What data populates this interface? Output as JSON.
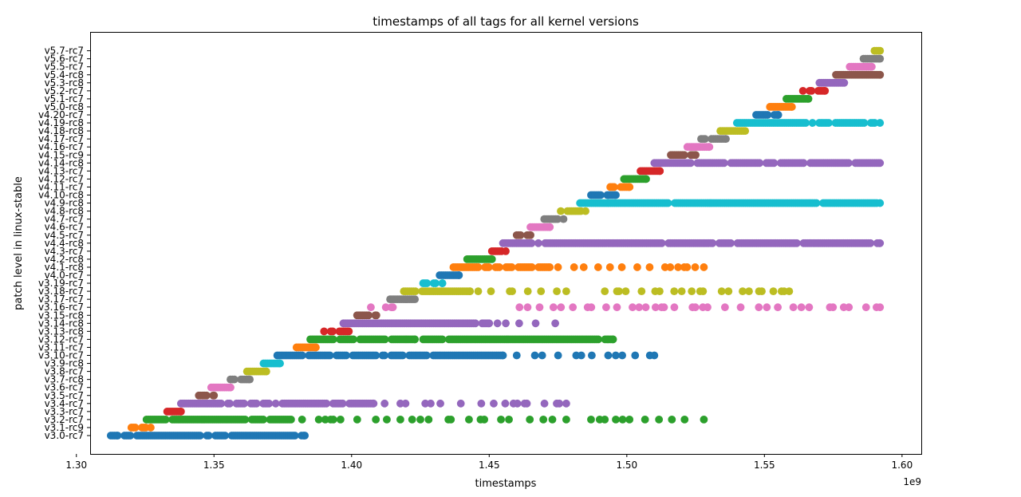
{
  "chart_data": {
    "type": "scatter",
    "title": "timestamps of all tags for all kernel versions",
    "xlabel": "timestamps",
    "ylabel": "patch level in linux-stable",
    "x_offset_label": "1e9",
    "xlim": [
      1.305,
      1.607
    ],
    "x_ticks": [
      1.3,
      1.35,
      1.4,
      1.45,
      1.5,
      1.55,
      1.6
    ],
    "x_tick_labels": [
      "1.30",
      "1.35",
      "1.40",
      "1.45",
      "1.50",
      "1.55",
      "1.60"
    ],
    "grid": false,
    "categories": [
      "v3.0-rc7",
      "v3.1-rc9",
      "v3.2-rc7",
      "v3.3-rc7",
      "v3.4-rc7",
      "v3.5-rc7",
      "v3.6-rc7",
      "v3.7-rc8",
      "v3.8-rc7",
      "v3.9-rc8",
      "v3.10-rc7",
      "v3.11-rc7",
      "v3.12-rc7",
      "v3.13-rc8",
      "v3.14-rc8",
      "v3.15-rc8",
      "v3.16-rc7",
      "v3.17-rc7",
      "v3.18-rc7",
      "v3.19-rc7",
      "v4.0-rc7",
      "v4.1-rc8",
      "v4.2-rc8",
      "v4.3-rc7",
      "v4.4-rc8",
      "v4.5-rc7",
      "v4.6-rc7",
      "v4.7-rc7",
      "v4.8-rc8",
      "v4.9-rc8",
      "v4.10-rc8",
      "v4.11-rc7",
      "v4.12-rc7",
      "v4.13-rc7",
      "v4.14-rc8",
      "v4.15-rc9",
      "v4.16-rc7",
      "v4.17-rc7",
      "v4.18-rc8",
      "v4.19-rc8",
      "v4.20-rc7",
      "v5.0-rc8",
      "v5.1-rc7",
      "v5.2-rc7",
      "v5.3-rc8",
      "v5.4-rc8",
      "v5.5-rc7",
      "v5.6-rc7",
      "v5.7-rc7"
    ],
    "colors": [
      "#1f77b4",
      "#ff7f0e",
      "#2ca02c",
      "#d62728",
      "#9467bd",
      "#8c564b",
      "#e377c2",
      "#7f7f7f",
      "#bcbd22",
      "#17becf"
    ],
    "series": [
      {
        "values": [
          [
            1.3125,
            1.315
          ],
          [
            1.3175,
            1.383
          ]
        ]
      },
      {
        "values": [
          [
            1.32,
            1.327
          ]
        ]
      },
      {
        "values": [
          [
            1.3255,
            1.378
          ],
          [
            1.382,
            1.422
          ],
          [
            1.425,
            1.478
          ],
          [
            1.487,
            1.492
          ],
          [
            1.496,
            1.521
          ],
          [
            1.528,
            1.528
          ]
        ],
        "sparse_from": 1.378
      },
      {
        "values": [
          [
            1.333,
            1.338
          ]
        ]
      },
      {
        "values": [
          [
            1.338,
            1.408
          ],
          [
            1.412,
            1.478
          ]
        ],
        "sparse_from": 1.408
      },
      {
        "values": [
          [
            1.3445,
            1.35
          ]
        ]
      },
      {
        "values": [
          [
            1.349,
            1.356
          ]
        ]
      },
      {
        "values": [
          [
            1.356,
            1.363
          ]
        ]
      },
      {
        "values": [
          [
            1.362,
            1.369
          ]
        ]
      },
      {
        "values": [
          [
            1.368,
            1.374
          ]
        ]
      },
      {
        "values": [
          [
            1.373,
            1.455
          ],
          [
            1.46,
            1.51
          ]
        ],
        "sparse_from": 1.455
      },
      {
        "values": [
          [
            1.38,
            1.387
          ]
        ]
      },
      {
        "values": [
          [
            1.385,
            1.423
          ],
          [
            1.426,
            1.495
          ]
        ],
        "sparse_from": 1.436
      },
      {
        "values": [
          [
            1.39,
            1.399
          ]
        ]
      },
      {
        "values": [
          [
            1.397,
            1.45
          ],
          [
            1.453,
            1.474
          ]
        ],
        "sparse_from": 1.443
      },
      {
        "values": [
          [
            1.402,
            1.409
          ]
        ]
      },
      {
        "values": [
          [
            1.407,
            1.415
          ],
          [
            1.461,
            1.592
          ]
        ],
        "sparse_from": 1.407
      },
      {
        "values": [
          [
            1.414,
            1.423
          ]
        ]
      },
      {
        "values": [
          [
            1.419,
            1.443
          ],
          [
            1.446,
            1.478
          ],
          [
            1.492,
            1.559
          ]
        ],
        "sparse_from": 1.433
      },
      {
        "values": [
          [
            1.426,
            1.433
          ]
        ]
      },
      {
        "values": [
          [
            1.432,
            1.439
          ]
        ]
      },
      {
        "values": [
          [
            1.437,
            1.472
          ],
          [
            1.475,
            1.528
          ]
        ],
        "sparse_from": 1.472
      },
      {
        "values": [
          [
            1.442,
            1.451
          ]
        ]
      },
      {
        "values": [
          [
            1.451,
            1.456
          ]
        ]
      },
      {
        "values": [
          [
            1.455,
            1.592
          ]
        ]
      },
      {
        "values": [
          [
            1.46,
            1.465
          ]
        ]
      },
      {
        "values": [
          [
            1.465,
            1.472
          ]
        ]
      },
      {
        "values": [
          [
            1.47,
            1.477
          ]
        ]
      },
      {
        "values": [
          [
            1.476,
            1.485
          ]
        ]
      },
      {
        "values": [
          [
            1.483,
            1.592
          ]
        ]
      },
      {
        "values": [
          [
            1.487,
            1.496
          ]
        ]
      },
      {
        "values": [
          [
            1.494,
            1.501
          ]
        ]
      },
      {
        "values": [
          [
            1.499,
            1.507
          ]
        ]
      },
      {
        "values": [
          [
            1.505,
            1.512
          ]
        ]
      },
      {
        "values": [
          [
            1.51,
            1.592
          ]
        ]
      },
      {
        "values": [
          [
            1.516,
            1.525
          ]
        ]
      },
      {
        "values": [
          [
            1.522,
            1.53
          ]
        ]
      },
      {
        "values": [
          [
            1.527,
            1.536
          ]
        ]
      },
      {
        "values": [
          [
            1.534,
            1.543
          ]
        ]
      },
      {
        "values": [
          [
            1.54,
            1.592
          ]
        ]
      },
      {
        "values": [
          [
            1.547,
            1.555
          ]
        ]
      },
      {
        "values": [
          [
            1.552,
            1.56
          ]
        ]
      },
      {
        "values": [
          [
            1.558,
            1.566
          ]
        ]
      },
      {
        "values": [
          [
            1.564,
            1.572
          ]
        ]
      },
      {
        "values": [
          [
            1.57,
            1.579
          ]
        ]
      },
      {
        "values": [
          [
            1.576,
            1.592
          ]
        ]
      },
      {
        "values": [
          [
            1.581,
            1.589
          ]
        ]
      },
      {
        "values": [
          [
            1.586,
            1.592
          ]
        ]
      },
      {
        "values": [
          [
            1.59,
            1.592
          ]
        ]
      }
    ]
  }
}
